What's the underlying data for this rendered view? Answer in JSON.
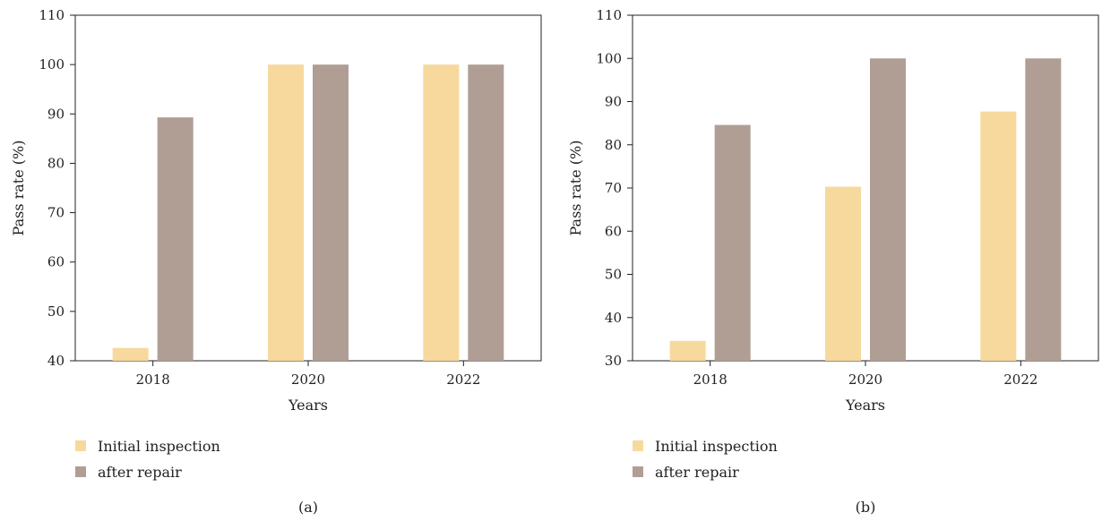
{
  "colors": {
    "initial": "#f7d99e",
    "repair": "#b09e95"
  },
  "chart_data": [
    {
      "type": "bar",
      "panel_label": "(a)",
      "categories": [
        "2018",
        "2020",
        "2022"
      ],
      "xlabel": "Years",
      "ylabel": "Pass rate (%)",
      "ylim": [
        40,
        110
      ],
      "yticks": [
        40,
        50,
        60,
        70,
        80,
        90,
        100,
        110
      ],
      "grid": false,
      "legend_position": "bottom-left",
      "series": [
        {
          "name": "Initial inspection",
          "values": [
            42.6,
            100,
            100
          ]
        },
        {
          "name": "after repair",
          "values": [
            89.3,
            100,
            100
          ]
        }
      ]
    },
    {
      "type": "bar",
      "panel_label": "(b)",
      "categories": [
        "2018",
        "2020",
        "2022"
      ],
      "xlabel": "Years",
      "ylabel": "Pass rate (%)",
      "ylim": [
        30,
        110
      ],
      "yticks": [
        30,
        40,
        50,
        60,
        70,
        80,
        90,
        100,
        110
      ],
      "grid": false,
      "legend_position": "bottom-left",
      "series": [
        {
          "name": "Initial inspection",
          "values": [
            34.6,
            70.3,
            87.7
          ]
        },
        {
          "name": "after repair",
          "values": [
            84.6,
            100,
            100
          ]
        }
      ]
    }
  ]
}
